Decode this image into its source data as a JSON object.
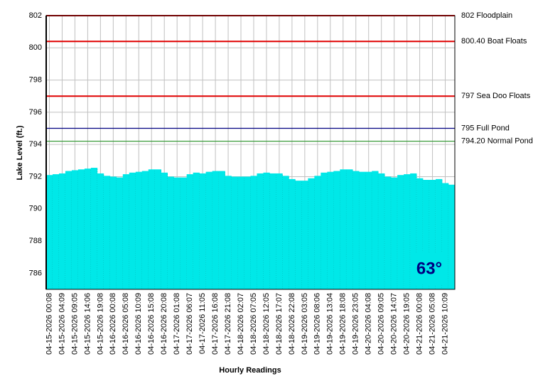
{
  "chart_data": {
    "type": "bar",
    "y_axis_label": "Lake Level (ft.)",
    "x_axis_label": "Hourly Readings",
    "annotation": "63°",
    "color": "#00e8e8",
    "grid": true,
    "ylim": [
      785,
      802
    ],
    "yticks": [
      786,
      788,
      790,
      792,
      794,
      796,
      798,
      800,
      802
    ],
    "reference_lines": [
      {
        "value": 802,
        "label": "802 Floodplain",
        "color": "#e00000"
      },
      {
        "value": 800.4,
        "label": "800.40 Boat Floats",
        "color": "#e00000"
      },
      {
        "value": 797,
        "label": "797 Sea Doo Floats",
        "color": "#e00000"
      },
      {
        "value": 795,
        "label": "795 Full Pond",
        "color": "#000080"
      },
      {
        "value": 794.2,
        "label": "794.20 Normal Pond",
        "color": "#3a9a3a"
      }
    ],
    "categories": [
      "04-15-2026 00:08",
      null,
      "04-15-2026 04:09",
      null,
      "04-15-2026 09:05",
      null,
      "04-15-2026 14:06",
      null,
      "04-15-2026 19:08",
      null,
      "04-16-2026 00:08",
      null,
      "04-16-2026 05:08",
      null,
      "04-16-2026 10:09",
      null,
      "04-16-2026 15:08",
      null,
      "04-16-2026 20:08",
      null,
      "04-17-2026 01:08",
      null,
      "04-17-2026 06:07",
      null,
      "04-17-2026 11:05",
      null,
      "04-17-2026 16:08",
      null,
      "04-17-2026 21:08",
      null,
      "04-18-2026 02:07",
      null,
      "04-18-2026 07:05",
      null,
      "04-18-2026 12:05",
      null,
      "04-18-2026 17:07",
      null,
      "04-18-2026 22:08",
      null,
      "04-19-2026 03:05",
      null,
      "04-19-2026 08:06",
      null,
      "04-19-2026 13:04",
      null,
      "04-19-2026 18:08",
      null,
      "04-19-2026 23:05",
      null,
      "04-20-2026 04:08",
      null,
      "04-20-2026 09:05",
      null,
      "04-20-2026 14:07",
      null,
      "04-20-2026 19:05",
      null,
      "04-21-2026 00:08",
      null,
      "04-21-2026 05:08",
      null,
      "04-21-2026 10:09",
      null
    ],
    "values": [
      792.1,
      792.15,
      792.2,
      792.35,
      792.4,
      792.45,
      792.5,
      792.55,
      792.2,
      792.05,
      792.0,
      791.95,
      792.15,
      792.25,
      792.3,
      792.35,
      792.45,
      792.45,
      792.25,
      792.0,
      791.95,
      791.95,
      792.15,
      792.25,
      792.2,
      792.3,
      792.35,
      792.35,
      792.05,
      792.0,
      792.0,
      792.0,
      792.05,
      792.2,
      792.25,
      792.2,
      792.2,
      792.05,
      791.85,
      791.75,
      791.75,
      791.9,
      792.05,
      792.25,
      792.3,
      792.35,
      792.45,
      792.45,
      792.35,
      792.3,
      792.3,
      792.35,
      792.2,
      792.0,
      791.95,
      792.1,
      792.15,
      792.2,
      791.9,
      791.8,
      791.8,
      791.85,
      791.6,
      791.5
    ]
  }
}
